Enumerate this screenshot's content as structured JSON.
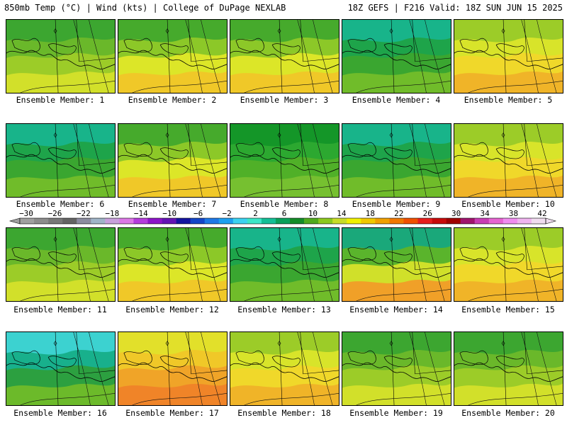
{
  "header": {
    "left": "850mb Temp (°C) | Wind (kts) | College of DuPage NEXLAB",
    "right": "18Z GEFS | F216 Valid: 18Z SUN JUN 15 2025"
  },
  "panels": [
    {
      "label": "Ensemble Member: 1",
      "scheme": "green-yellow"
    },
    {
      "label": "Ensemble Member: 2",
      "scheme": "green-orange"
    },
    {
      "label": "Ensemble Member: 3",
      "scheme": "green-orange"
    },
    {
      "label": "Ensemble Member: 4",
      "scheme": "teal-green"
    },
    {
      "label": "Ensemble Member: 5",
      "scheme": "yellow-orange"
    },
    {
      "label": "Ensemble Member: 6",
      "scheme": "teal-green"
    },
    {
      "label": "Ensemble Member: 7",
      "scheme": "green-orange"
    },
    {
      "label": "Ensemble Member: 8",
      "scheme": "green"
    },
    {
      "label": "Ensemble Member: 9",
      "scheme": "teal-green"
    },
    {
      "label": "Ensemble Member: 10",
      "scheme": "yellow-orange"
    },
    {
      "label": "Ensemble Member: 11",
      "scheme": "green-yellow"
    },
    {
      "label": "Ensemble Member: 12",
      "scheme": "green-orange"
    },
    {
      "label": "Ensemble Member: 13",
      "scheme": "teal-green"
    },
    {
      "label": "Ensemble Member: 14",
      "scheme": "teal-orange"
    },
    {
      "label": "Ensemble Member: 15",
      "scheme": "yellow-orange"
    },
    {
      "label": "Ensemble Member: 16",
      "scheme": "cyan-green"
    },
    {
      "label": "Ensemble Member: 17",
      "scheme": "orange"
    },
    {
      "label": "Ensemble Member: 18",
      "scheme": "yellow-orange"
    },
    {
      "label": "Ensemble Member: 19",
      "scheme": "green-yellow"
    },
    {
      "label": "Ensemble Member: 20",
      "scheme": "green-yellow"
    }
  ],
  "colorbar": {
    "labels": [
      "−30",
      "−26",
      "−22",
      "−18",
      "−14",
      "−10",
      "−6",
      "−2",
      "2",
      "6",
      "10",
      "14",
      "18",
      "22",
      "26",
      "30",
      "34",
      "38",
      "42"
    ],
    "colors": [
      "#a0a0a0",
      "#8c8c8c",
      "#787878",
      "#646464",
      "#8c8ca0",
      "#a0b4c8",
      "#c8a0dc",
      "#dc78e6",
      "#b43cdc",
      "#8c14c8",
      "#6414b4",
      "#1414a0",
      "#1446c8",
      "#1e78e6",
      "#1ea0f0",
      "#3cd2f0",
      "#3ce6c8",
      "#14be96",
      "#0aa05a",
      "#148c28",
      "#50aa1e",
      "#8cc81e",
      "#c8dc28",
      "#f0f000",
      "#f0c800",
      "#f0a000",
      "#f07800",
      "#f05000",
      "#e61e1e",
      "#c80a0a",
      "#a00000",
      "#a0146e",
      "#c83cb4",
      "#e664d2",
      "#f08cf0",
      "#f0b4f0",
      "#f0dcf0"
    ]
  }
}
